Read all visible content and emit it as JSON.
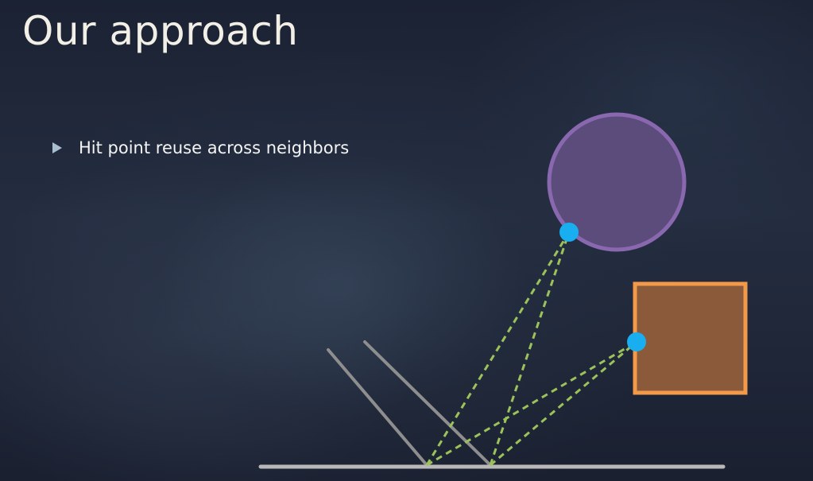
{
  "slide": {
    "title": "Our approach",
    "bullets": [
      {
        "text": "Hit point reuse across neighbors",
        "icon": "triangle-bullet-icon"
      }
    ]
  },
  "diagram": {
    "colors": {
      "sphere_fill": "#5c4c7c",
      "sphere_stroke": "#8a68b0",
      "box_fill": "#8a5a3a",
      "box_stroke": "#f29a4a",
      "hit_point": "#18aef0",
      "ray": "#9cc25a",
      "surface": "#b8b8b8",
      "neighbor_ray": "#8e8e8e"
    }
  }
}
